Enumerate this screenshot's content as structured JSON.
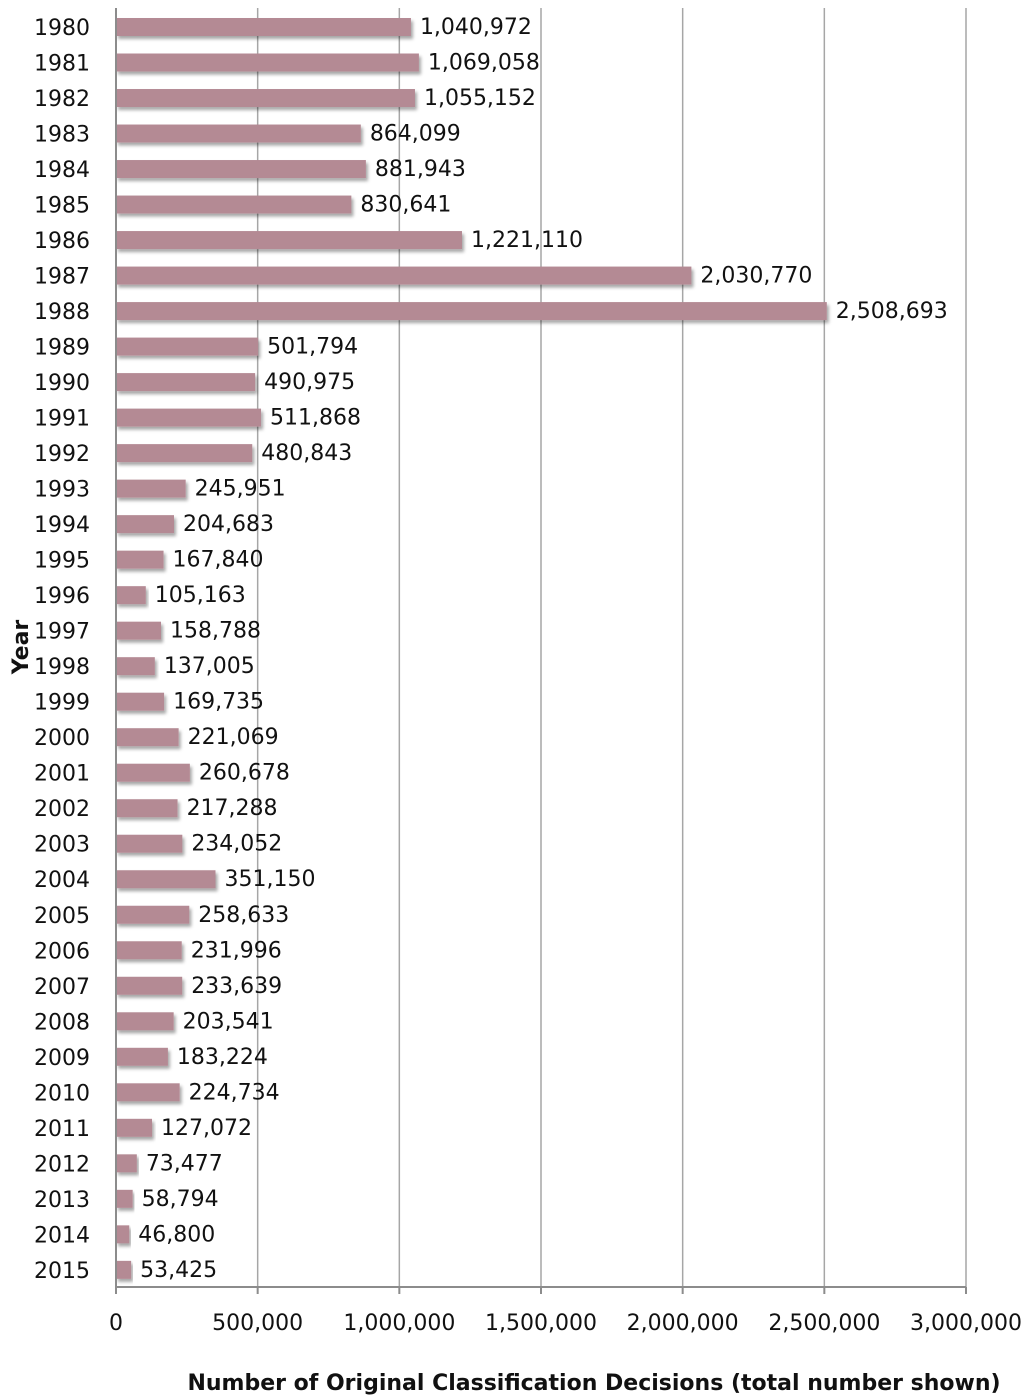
{
  "chart_data": {
    "type": "bar",
    "orientation": "horizontal",
    "categories": [
      "1980",
      "1981",
      "1982",
      "1983",
      "1984",
      "1985",
      "1986",
      "1987",
      "1988",
      "1989",
      "1990",
      "1991",
      "1992",
      "1993",
      "1994",
      "1995",
      "1996",
      "1997",
      "1998",
      "1999",
      "2000",
      "2001",
      "2002",
      "2003",
      "2004",
      "2005",
      "2006",
      "2007",
      "2008",
      "2009",
      "2010",
      "2011",
      "2012",
      "2013",
      "2014",
      "2015"
    ],
    "values": [
      1040972,
      1069058,
      1055152,
      864099,
      881943,
      830641,
      1221110,
      2030770,
      2508693,
      501794,
      490975,
      511868,
      480843,
      245951,
      204683,
      167840,
      105163,
      158788,
      137005,
      169735,
      221069,
      260678,
      217288,
      234052,
      351150,
      258633,
      231996,
      233639,
      203541,
      183224,
      224734,
      127072,
      73477,
      58794,
      46800,
      53425
    ],
    "value_labels": [
      "1,040,972",
      "1,069,058",
      "1,055,152",
      "864,099",
      "881,943",
      "830,641",
      "1,221,110",
      "2,030,770",
      "2,508,693",
      "501,794",
      "490,975",
      "511,868",
      "480,843",
      "245,951",
      "204,683",
      "167,840",
      "105,163",
      "158,788",
      "137,005",
      "169,735",
      "221,069",
      "260,678",
      "217,288",
      "234,052",
      "351,150",
      "258,633",
      "231,996",
      "233,639",
      "203,541",
      "183,224",
      "224,734",
      "127,072",
      "73,477",
      "58,794",
      "46,800",
      "53,425"
    ],
    "xlabel": "Number of Original Classification Decisions (total number shown)",
    "ylabel": "Year",
    "xlim": [
      0,
      3000000
    ],
    "x_ticks": [
      0,
      500000,
      1000000,
      1500000,
      2000000,
      2500000,
      3000000
    ],
    "x_tick_labels": [
      "0",
      "500,000",
      "1,000,000",
      "1,500,000",
      "2,000,000",
      "2,500,000",
      "3,000,000"
    ],
    "grid": "vertical",
    "legend": "none",
    "bar_color": "#b48a94"
  }
}
